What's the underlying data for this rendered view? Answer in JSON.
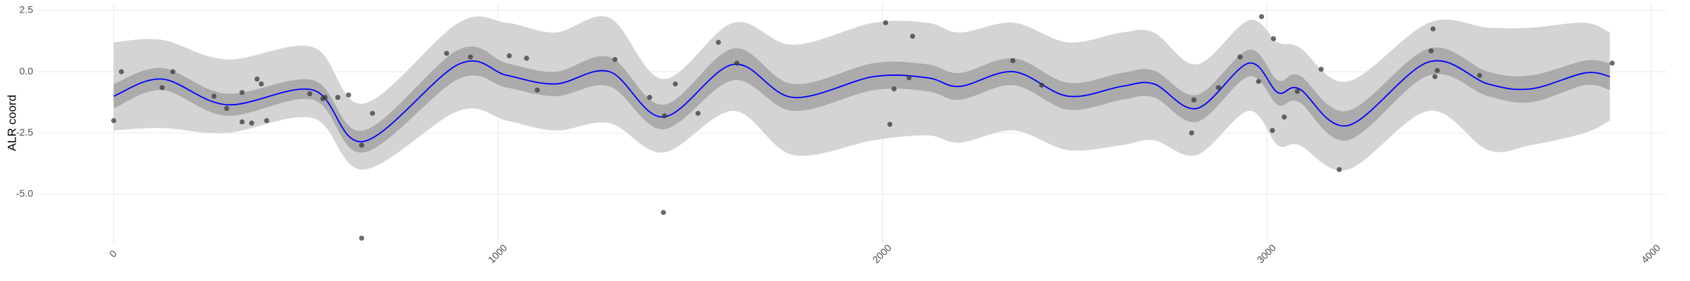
{
  "chart_data": {
    "type": "ribbon",
    "y_label": "ALR coord",
    "xlim": [
      -195,
      4040
    ],
    "ylim": [
      -7.0,
      2.8
    ],
    "xticks": [
      0,
      1000,
      2000,
      3000,
      4000
    ],
    "yticks": [
      {
        "value": -5,
        "label": "-5.0"
      },
      -2.5,
      {
        "value": 0,
        "label": "0.0"
      },
      2.5
    ],
    "grid": true,
    "x": [
      0,
      126,
      294,
      519,
      650,
      897,
      1023,
      1150,
      1290,
      1430,
      1612,
      1767,
      1977,
      2117,
      2201,
      2341,
      2482,
      2622,
      2706,
      2818,
      2953,
      3028,
      3084,
      3210,
      3421,
      3575,
      3687,
      3827,
      3892
    ],
    "mean": [
      -1.0,
      -0.3,
      -1.35,
      -0.75,
      -2.85,
      0.3,
      -0.15,
      -0.5,
      0.0,
      -1.85,
      0.3,
      -1.05,
      -0.2,
      -0.25,
      -0.6,
      0.0,
      -1.0,
      -0.6,
      -0.5,
      -1.5,
      0.35,
      -0.85,
      -0.7,
      -2.2,
      0.4,
      -0.5,
      -0.7,
      -0.05,
      -0.2
    ],
    "line_color": "#0000ff",
    "outer_band": {
      "color": "#d4d4d4",
      "lower": [
        -2.4,
        -2.3,
        -2.5,
        -1.9,
        -4.0,
        -1.6,
        -2.0,
        -2.4,
        -2.1,
        -3.3,
        -1.6,
        -3.4,
        -2.8,
        -2.6,
        -2.9,
        -2.4,
        -3.2,
        -3.0,
        -2.8,
        -3.4,
        -1.6,
        -3.0,
        -3.0,
        -4.0,
        -1.6,
        -3.2,
        -3.0,
        -2.5,
        -2.0
      ],
      "upper": [
        1.2,
        1.3,
        0.5,
        1.0,
        -1.3,
        2.0,
        2.0,
        1.6,
        2.2,
        -0.3,
        2.0,
        1.1,
        2.0,
        2.0,
        1.6,
        2.0,
        1.2,
        1.6,
        1.6,
        0.3,
        2.1,
        1.2,
        1.0,
        -0.4,
        2.0,
        1.8,
        1.8,
        2.0,
        1.6
      ]
    },
    "inner_band": {
      "color": "#ababab",
      "lower": [
        -1.5,
        -0.75,
        -1.8,
        -1.15,
        -3.3,
        -0.3,
        -0.65,
        -1.0,
        -0.6,
        -2.35,
        -0.35,
        -1.6,
        -0.75,
        -0.8,
        -1.15,
        -0.55,
        -1.55,
        -1.15,
        -1.05,
        -2.05,
        -0.2,
        -1.35,
        -1.25,
        -2.8,
        -0.15,
        -1.0,
        -1.25,
        -0.55,
        -0.75
      ],
      "upper": [
        -0.5,
        0.15,
        -0.9,
        -0.35,
        -2.4,
        0.9,
        0.35,
        0.0,
        0.6,
        -1.35,
        0.95,
        -0.5,
        0.35,
        0.3,
        -0.05,
        0.55,
        -0.45,
        -0.05,
        0.05,
        -0.95,
        0.9,
        -0.35,
        -0.15,
        -1.6,
        0.95,
        0.0,
        -0.15,
        0.45,
        0.35
      ]
    },
    "points": {
      "color": "#3a3a3a",
      "x": [
        0,
        20,
        126,
        154,
        261,
        294,
        334,
        334,
        359,
        373,
        384,
        398,
        510,
        544,
        550,
        583,
        611,
        645,
        645,
        673,
        866,
        928,
        1029,
        1074,
        1102,
        1304,
        1394,
        1430,
        1433,
        1461,
        1520,
        1573,
        1621,
        2008,
        2019,
        2030,
        2069,
        2078,
        2339,
        2414,
        2804,
        2810,
        2874,
        2930,
        2978,
        2986,
        3014,
        3017,
        3045,
        3079,
        3141,
        3188,
        3427,
        3432,
        3437,
        3443,
        3553,
        3898
      ],
      "y": [
        -2.0,
        0.0,
        -0.65,
        0.0,
        -1.0,
        -1.5,
        -0.85,
        -2.05,
        -2.1,
        -0.3,
        -0.5,
        -2.0,
        -0.9,
        -1.1,
        -1.05,
        -1.05,
        -0.95,
        -6.8,
        -3.0,
        -1.7,
        0.75,
        0.6,
        0.65,
        0.55,
        -0.75,
        0.5,
        -1.05,
        -5.75,
        -1.8,
        -0.5,
        -1.7,
        1.2,
        0.35,
        2.0,
        -2.15,
        -0.7,
        -0.25,
        1.45,
        0.45,
        -0.55,
        -2.5,
        -1.15,
        -0.65,
        0.6,
        -0.4,
        2.25,
        -2.4,
        1.35,
        -1.85,
        -0.8,
        0.1,
        -4.0,
        0.85,
        1.75,
        -0.2,
        0.05,
        -0.15,
        0.35
      ]
    }
  }
}
